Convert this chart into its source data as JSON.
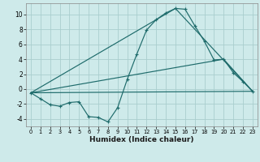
{
  "xlabel": "Humidex (Indice chaleur)",
  "background_color": "#ceeaea",
  "grid_color": "#aacece",
  "line_color": "#1e6b6b",
  "xlim": [
    -0.5,
    23.5
  ],
  "ylim": [
    -5.0,
    11.5
  ],
  "xticks": [
    0,
    1,
    2,
    3,
    4,
    5,
    6,
    7,
    8,
    9,
    10,
    11,
    12,
    13,
    14,
    15,
    16,
    17,
    18,
    19,
    20,
    21,
    22,
    23
  ],
  "yticks": [
    -4,
    -2,
    0,
    2,
    4,
    6,
    8,
    10
  ],
  "line1_x": [
    0,
    1,
    2,
    3,
    4,
    5,
    6,
    7,
    8,
    9,
    10,
    11,
    12,
    13,
    14,
    15,
    16,
    17,
    18,
    19,
    20,
    21,
    22,
    23
  ],
  "line1_y": [
    -0.5,
    -1.3,
    -2.1,
    -2.3,
    -1.8,
    -1.7,
    -3.7,
    -3.8,
    -4.4,
    -2.5,
    1.3,
    4.7,
    7.9,
    9.3,
    10.2,
    10.8,
    10.7,
    8.5,
    6.4,
    3.9,
    4.0,
    2.2,
    1.0,
    -0.3
  ],
  "line2_x": [
    0,
    23
  ],
  "line2_y": [
    -0.5,
    -0.3
  ],
  "line3_x": [
    0,
    20,
    23
  ],
  "line3_y": [
    -0.5,
    4.0,
    -0.3
  ],
  "line4_x": [
    0,
    15,
    23
  ],
  "line4_y": [
    -0.5,
    10.8,
    -0.3
  ]
}
